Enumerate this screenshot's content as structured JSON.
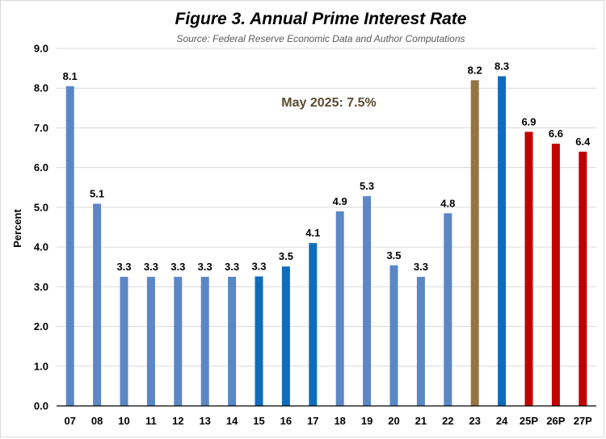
{
  "chart_data": {
    "type": "bar",
    "title": "Figure 3. Annual Prime Interest Rate",
    "subtitle": "Source: Federal Reserve Economic Data and Author Computations",
    "xlabel": "",
    "ylabel": "Percent",
    "ylim": [
      0,
      9
    ],
    "yticks": [
      "0.0",
      "1.0",
      "2.0",
      "3.0",
      "4.0",
      "5.0",
      "6.0",
      "7.0",
      "8.0",
      "9.0"
    ],
    "grid": true,
    "categories": [
      "07",
      "08",
      "10",
      "11",
      "12",
      "13",
      "14",
      "15",
      "16",
      "17",
      "18",
      "19",
      "20",
      "21",
      "22",
      "23",
      "24",
      "25P",
      "26P",
      "27P"
    ],
    "values": [
      8.05,
      5.09,
      3.25,
      3.25,
      3.25,
      3.25,
      3.25,
      3.26,
      3.51,
      4.1,
      4.9,
      5.28,
      3.54,
      3.25,
      4.85,
      8.2,
      8.3,
      6.9,
      6.6,
      6.4
    ],
    "data_labels": [
      "8.1",
      "5.1",
      "3.3",
      "3.3",
      "3.3",
      "3.3",
      "3.3",
      "3.3",
      "3.5",
      "4.1",
      "4.9",
      "5.3",
      "3.5",
      "3.3",
      "4.8",
      "8.2",
      "8.3",
      "6.9",
      "6.6",
      "6.4"
    ],
    "bar_colors": [
      "#5b87c5",
      "#5b87c5",
      "#5b87c5",
      "#5b87c5",
      "#5b87c5",
      "#5b87c5",
      "#5b87c5",
      "#0f6cbd",
      "#0f6cbd",
      "#0f6cbd",
      "#5b87c5",
      "#5b87c5",
      "#5b87c5",
      "#5b87c5",
      "#5b87c5",
      "#957541",
      "#0f6cbd",
      "#c00000",
      "#c00000",
      "#c00000"
    ],
    "annotation": {
      "text": "May 2025: 7.5%",
      "color": "#5b4a30"
    }
  }
}
